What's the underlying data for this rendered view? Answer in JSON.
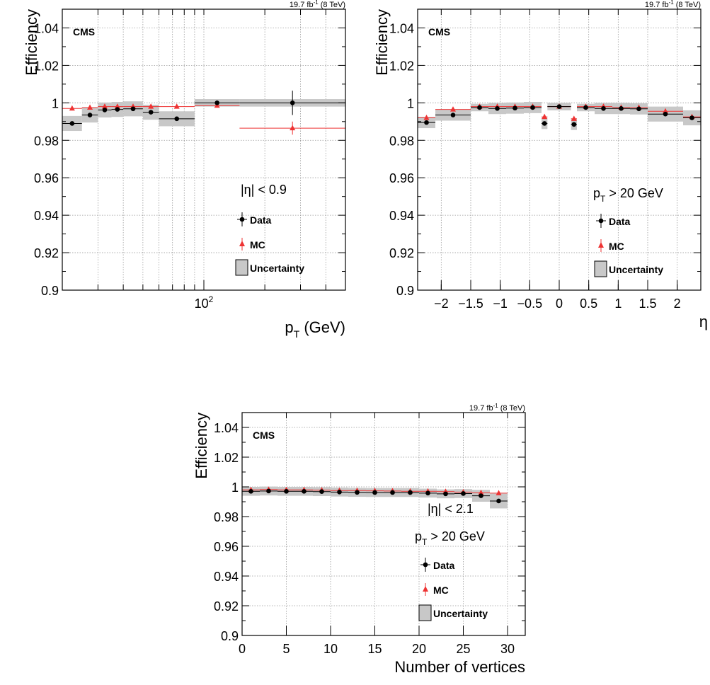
{
  "chart_data": [
    {
      "type": "scatter",
      "id": "pt",
      "header": "19.7 fb",
      "header_sup": "-1",
      "header_tail": " (8 TeV)",
      "tag": "CMS",
      "ylabel": "Efficiency",
      "xlabel_main": "p",
      "xlabel_sub": "T",
      "xlabel_tail": " (GeV)",
      "x_scale": "log",
      "xlim": [
        20,
        500
      ],
      "ylim": [
        0.9,
        1.05
      ],
      "y_ticks": [
        "0.9",
        "0.92",
        "0.94",
        "0.96",
        "0.98",
        "1",
        "1.02",
        "1.04"
      ],
      "x_ticks": [
        {
          "label": "10",
          "sup": "2",
          "value": 100
        }
      ],
      "x_grid": [
        20,
        30,
        40,
        50,
        60,
        70,
        80,
        90,
        100,
        200,
        300,
        400,
        500
      ],
      "cut_line1": "|η| < 0.9",
      "cut_line2": "",
      "cut_line2_sub": "",
      "cut_line2_tail": "",
      "legend": {
        "data": "Data",
        "mc": "MC",
        "unc": "Uncertainty"
      },
      "bins": [
        {
          "lo": 20,
          "hi": 25,
          "data": 0.989,
          "mc": 0.997,
          "unc": 0.004
        },
        {
          "lo": 25,
          "hi": 30,
          "data": 0.9935,
          "mc": 0.9975,
          "unc": 0.004
        },
        {
          "lo": 30,
          "hi": 35,
          "data": 0.9962,
          "mc": 0.998,
          "unc": 0.004
        },
        {
          "lo": 35,
          "hi": 40,
          "data": 0.9965,
          "mc": 0.998,
          "unc": 0.004
        },
        {
          "lo": 40,
          "hi": 50,
          "data": 0.9968,
          "mc": 0.998,
          "unc": 0.004
        },
        {
          "lo": 50,
          "hi": 60,
          "data": 0.995,
          "mc": 0.998,
          "unc": 0.004
        },
        {
          "lo": 60,
          "hi": 90,
          "data": 0.9915,
          "mc": 0.998,
          "unc": 0.004
        },
        {
          "lo": 90,
          "hi": 150,
          "data": 1.0,
          "mc": 0.9985,
          "unc": 0.002
        },
        {
          "lo": 150,
          "hi": 500,
          "data": 1.0,
          "mc": 0.9865,
          "unc": 0.002,
          "data_err": 0.0065,
          "mc_err": 0.0035
        }
      ]
    },
    {
      "type": "scatter",
      "id": "eta",
      "header": "19.7 fb",
      "header_sup": "-1",
      "header_tail": " (8 TeV)",
      "tag": "CMS",
      "ylabel": "Efficiency",
      "xlabel_main": "η",
      "xlabel_sub": "",
      "xlabel_tail": "",
      "x_scale": "linear",
      "xlim": [
        -2.4,
        2.4
      ],
      "ylim": [
        0.9,
        1.05
      ],
      "y_ticks": [
        "0.9",
        "0.92",
        "0.94",
        "0.96",
        "0.98",
        "1",
        "1.02",
        "1.04"
      ],
      "x_ticks": [
        {
          "label": "−2",
          "value": -2
        },
        {
          "label": "−1.5",
          "value": -1.5
        },
        {
          "label": "−1",
          "value": -1
        },
        {
          "label": "−0.5",
          "value": -0.5
        },
        {
          "label": "0",
          "value": 0
        },
        {
          "label": "0.5",
          "value": 0.5
        },
        {
          "label": "1",
          "value": 1
        },
        {
          "label": "1.5",
          "value": 1.5
        },
        {
          "label": "2",
          "value": 2
        }
      ],
      "x_grid": [
        -2,
        -1.5,
        -1,
        -0.5,
        0,
        0.5,
        1,
        1.5,
        2
      ],
      "cut_line1": "",
      "cut_line2": "p",
      "cut_line2_sub": "T",
      "cut_line2_tail": " > 20 GeV",
      "legend": {
        "data": "Data",
        "mc": "MC",
        "unc": "Uncertainty"
      },
      "bins": [
        {
          "lo": -2.4,
          "hi": -2.1,
          "data": 0.9895,
          "mc": 0.992,
          "unc": 0.003
        },
        {
          "lo": -2.1,
          "hi": -1.5,
          "data": 0.9935,
          "mc": 0.9965,
          "unc": 0.003
        },
        {
          "lo": -1.5,
          "hi": -1.2,
          "data": 0.9975,
          "mc": 0.998,
          "unc": 0.002
        },
        {
          "lo": -1.2,
          "hi": -0.9,
          "data": 0.997,
          "mc": 0.998,
          "unc": 0.003
        },
        {
          "lo": -0.9,
          "hi": -0.6,
          "data": 0.9972,
          "mc": 0.998,
          "unc": 0.003
        },
        {
          "lo": -0.6,
          "hi": -0.3,
          "data": 0.9975,
          "mc": 0.998,
          "unc": 0.003
        },
        {
          "lo": -0.3,
          "hi": -0.2,
          "data": 0.989,
          "mc": 0.9925,
          "unc": 0.003
        },
        {
          "lo": -0.2,
          "hi": 0.2,
          "data": 0.998,
          "mc": 0.998,
          "unc": 0.002
        },
        {
          "lo": 0.2,
          "hi": 0.3,
          "data": 0.9885,
          "mc": 0.9915,
          "unc": 0.003
        },
        {
          "lo": 0.3,
          "hi": 0.6,
          "data": 0.9975,
          "mc": 0.998,
          "unc": 0.002
        },
        {
          "lo": 0.6,
          "hi": 0.9,
          "data": 0.997,
          "mc": 0.998,
          "unc": 0.003
        },
        {
          "lo": 0.9,
          "hi": 1.2,
          "data": 0.997,
          "mc": 0.9975,
          "unc": 0.003
        },
        {
          "lo": 1.2,
          "hi": 1.5,
          "data": 0.9968,
          "mc": 0.9975,
          "unc": 0.003
        },
        {
          "lo": 1.5,
          "hi": 2.1,
          "data": 0.994,
          "mc": 0.9955,
          "unc": 0.004
        },
        {
          "lo": 2.1,
          "hi": 2.4,
          "data": 0.992,
          "mc": 0.9925,
          "unc": 0.004
        }
      ]
    },
    {
      "type": "scatter",
      "id": "nvtx",
      "header": "19.7 fb",
      "header_sup": "-1",
      "header_tail": " (8 TeV)",
      "tag": "CMS",
      "ylabel": "Efficiency",
      "xlabel_main": "Number of vertices",
      "xlabel_sub": "",
      "xlabel_tail": "",
      "x_scale": "linear",
      "xlim": [
        0,
        32
      ],
      "ylim": [
        0.9,
        1.05
      ],
      "y_ticks": [
        "0.9",
        "0.92",
        "0.94",
        "0.96",
        "0.98",
        "1",
        "1.02",
        "1.04"
      ],
      "x_ticks": [
        {
          "label": "0",
          "value": 0
        },
        {
          "label": "5",
          "value": 5
        },
        {
          "label": "10",
          "value": 10
        },
        {
          "label": "15",
          "value": 15
        },
        {
          "label": "20",
          "value": 20
        },
        {
          "label": "25",
          "value": 25
        },
        {
          "label": "30",
          "value": 30
        }
      ],
      "x_grid": [
        0,
        5,
        10,
        15,
        20,
        25,
        30
      ],
      "cut_line1": "|η| < 2.1",
      "cut_line2": "p",
      "cut_line2_sub": "T",
      "cut_line2_tail": " > 20 GeV",
      "legend": {
        "data": "Data",
        "mc": "MC",
        "unc": "Uncertainty"
      },
      "bins": [
        {
          "lo": 0,
          "hi": 2,
          "data": 0.997,
          "mc": 0.998,
          "unc": 0.003
        },
        {
          "lo": 2,
          "hi": 4,
          "data": 0.9972,
          "mc": 0.9982,
          "unc": 0.003
        },
        {
          "lo": 4,
          "hi": 6,
          "data": 0.997,
          "mc": 0.998,
          "unc": 0.003
        },
        {
          "lo": 6,
          "hi": 8,
          "data": 0.997,
          "mc": 0.998,
          "unc": 0.003
        },
        {
          "lo": 8,
          "hi": 10,
          "data": 0.9968,
          "mc": 0.9978,
          "unc": 0.003
        },
        {
          "lo": 10,
          "hi": 12,
          "data": 0.9965,
          "mc": 0.9975,
          "unc": 0.003
        },
        {
          "lo": 12,
          "hi": 14,
          "data": 0.9963,
          "mc": 0.9975,
          "unc": 0.003
        },
        {
          "lo": 14,
          "hi": 16,
          "data": 0.9962,
          "mc": 0.9973,
          "unc": 0.003
        },
        {
          "lo": 16,
          "hi": 18,
          "data": 0.9962,
          "mc": 0.9972,
          "unc": 0.003
        },
        {
          "lo": 18,
          "hi": 20,
          "data": 0.9962,
          "mc": 0.997,
          "unc": 0.003
        },
        {
          "lo": 20,
          "hi": 22,
          "data": 0.9958,
          "mc": 0.997,
          "unc": 0.003
        },
        {
          "lo": 22,
          "hi": 24,
          "data": 0.9953,
          "mc": 0.9968,
          "unc": 0.003
        },
        {
          "lo": 24,
          "hi": 26,
          "data": 0.9955,
          "mc": 0.9965,
          "unc": 0.003
        },
        {
          "lo": 26,
          "hi": 28,
          "data": 0.994,
          "mc": 0.996,
          "unc": 0.004
        },
        {
          "lo": 28,
          "hi": 30,
          "data": 0.9905,
          "mc": 0.9958,
          "unc": 0.005
        }
      ]
    }
  ]
}
